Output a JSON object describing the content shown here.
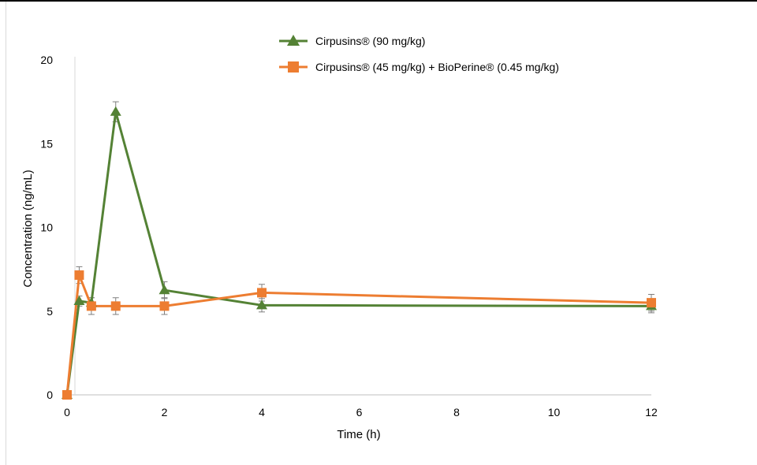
{
  "chart_data": {
    "type": "line",
    "title": "",
    "xlabel": "Time (h)",
    "ylabel": "Concentration (ng/mL)",
    "xlim": [
      0,
      12
    ],
    "ylim": [
      0,
      20
    ],
    "xticks": [
      0,
      2,
      4,
      6,
      8,
      10,
      12
    ],
    "yticks": [
      0,
      5,
      10,
      15,
      20
    ],
    "grid": false,
    "legend_position": "top-center",
    "series": [
      {
        "name": "Cirpusins® (90 mg/kg)",
        "color": "#548235",
        "marker": "triangle",
        "x": [
          0,
          0.25,
          0.5,
          1,
          2,
          4,
          12
        ],
        "y": [
          0,
          5.6,
          5.5,
          16.9,
          6.25,
          5.35,
          5.3
        ],
        "err": [
          0,
          0.3,
          0.3,
          0.6,
          0.5,
          0.4,
          0.4
        ]
      },
      {
        "name": "Cirpusins® (45 mg/kg) + BioPerine® (0.45 mg/kg)",
        "color": "#ED7D31",
        "marker": "square",
        "x": [
          0,
          0.25,
          0.5,
          1,
          2,
          4,
          12
        ],
        "y": [
          0,
          7.15,
          5.3,
          5.3,
          5.3,
          6.1,
          5.5
        ],
        "err": [
          0,
          0.5,
          0.5,
          0.5,
          0.5,
          0.5,
          0.5
        ]
      }
    ]
  }
}
